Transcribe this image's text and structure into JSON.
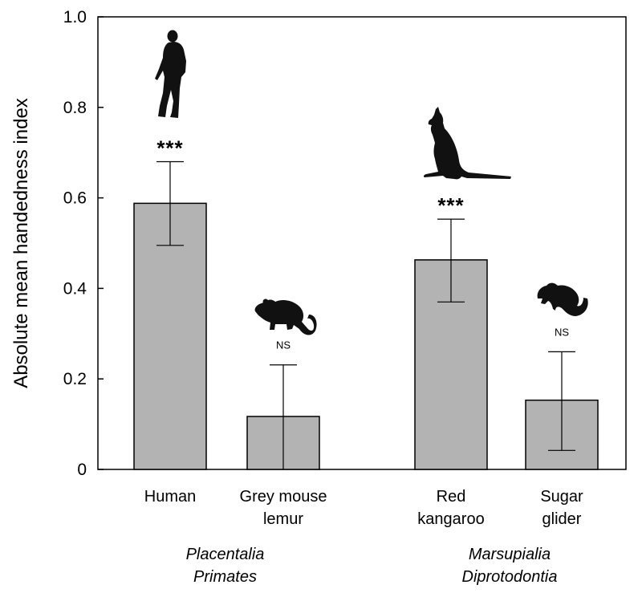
{
  "chart_data": {
    "type": "bar",
    "ylabel": "Absolute mean handedness index",
    "xlabel": "",
    "ylim": [
      0,
      1.0
    ],
    "yticks": [
      "0",
      "0.2",
      "0.4",
      "0.6",
      "0.8",
      "1.0"
    ],
    "ytick_values": [
      0,
      0.2,
      0.4,
      0.6,
      0.8,
      1.0
    ],
    "grid": false,
    "bar_color": "#b3b3b3",
    "categories": [
      {
        "lines": [
          "Human"
        ],
        "value": 0.588,
        "error_low": 0.495,
        "error_high": 0.68,
        "significance": "***",
        "silhouette": "human-silhouette-icon"
      },
      {
        "lines": [
          "Grey mouse",
          "lemur"
        ],
        "value": 0.117,
        "error_low": 0.0,
        "error_high": 0.231,
        "significance": "NS",
        "silhouette": "mouse-lemur-silhouette-icon"
      },
      {
        "lines": [
          "Red",
          "kangaroo"
        ],
        "value": 0.463,
        "error_low": 0.37,
        "error_high": 0.553,
        "significance": "***",
        "silhouette": "kangaroo-silhouette-icon"
      },
      {
        "lines": [
          "Sugar",
          "glider"
        ],
        "value": 0.153,
        "error_low": 0.042,
        "error_high": 0.26,
        "significance": "NS",
        "silhouette": "sugar-glider-silhouette-icon"
      }
    ],
    "groups": [
      {
        "lines": [
          "Placentalia",
          "Primates"
        ],
        "members": [
          0,
          1
        ]
      },
      {
        "lines": [
          "Marsupialia",
          "Diprotodontia"
        ],
        "members": [
          2,
          3
        ]
      }
    ]
  }
}
